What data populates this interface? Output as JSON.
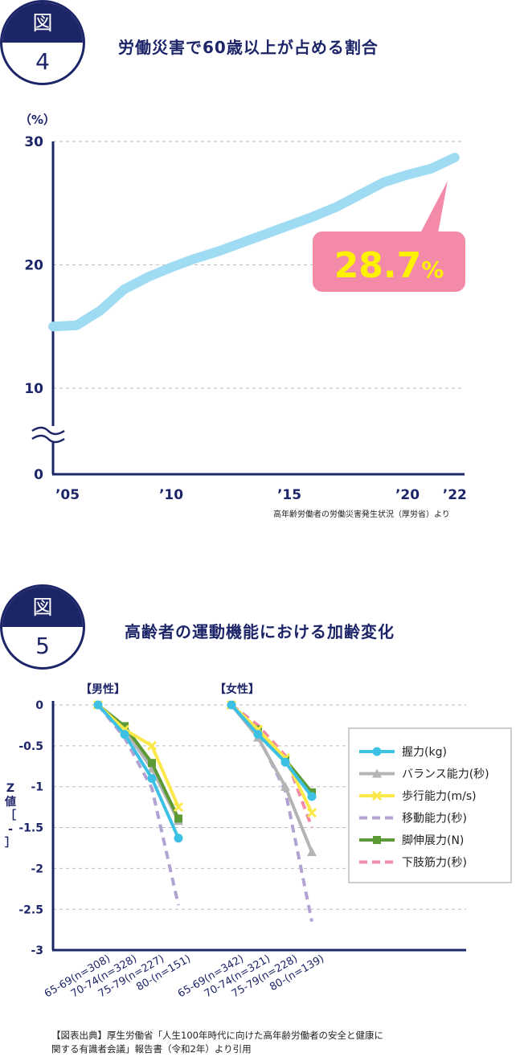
{
  "fig4": {
    "badge_top": "図",
    "badge_num": "4",
    "title": "労働災害で60歳以上が占める割合",
    "unit": "（%）",
    "callout": "28.7",
    "callout_unit": "%",
    "source": "高年齢労働者の労働災害発生状況（厚労省）より",
    "colors": {
      "line": "#9fdcf4",
      "callout": "#f28aa8",
      "callout_text": "#fff200",
      "axis": "#1d2569"
    }
  },
  "fig5": {
    "badge_top": "図",
    "badge_num": "5",
    "title": "高齢者の運動機能における加齢変化",
    "ylabel": "Z値［-］",
    "panel_male": "【男性】",
    "panel_female": "【女性】",
    "citation_line1": "【図表出典】厚生労働省「人生100年時代に向けた高年齢労働者の安全と健康に",
    "citation_line2": "関する有識者会議」報告書（令和2年）より引用"
  },
  "chart_data": [
    {
      "type": "line",
      "ylim": [
        0,
        30
      ],
      "yticks": [
        "0",
        "10",
        "20",
        "30"
      ],
      "axis_break": true,
      "grid": "dashed",
      "xticks": [
        "’05",
        "’10",
        "’15",
        "’20",
        "’22"
      ],
      "x": [
        2005,
        2006,
        2007,
        2008,
        2009,
        2010,
        2011,
        2012,
        2013,
        2014,
        2015,
        2016,
        2017,
        2018,
        2019,
        2020,
        2021,
        2022
      ],
      "series": [
        {
          "values": [
            15.0,
            15.1,
            16.3,
            18.0,
            19.0,
            19.8,
            20.5,
            21.1,
            21.8,
            22.5,
            23.2,
            23.9,
            24.7,
            25.7,
            26.7,
            27.3,
            27.8,
            28.7
          ]
        }
      ]
    },
    {
      "type": "line",
      "ylim": [
        -3,
        0
      ],
      "yticks": [
        "0",
        "-0.5",
        "-1",
        "-1.5",
        "-2",
        "-2.5",
        "-3"
      ],
      "grid": "dashed",
      "legend_position": "right",
      "panels": [
        {
          "name": "【男性】",
          "categories": [
            "65-69(n=308)",
            "70-74(n=328)",
            "75-79(n=227)",
            "80-(n=151)"
          ],
          "series": [
            {
              "name": "握力(kg)",
              "color": "#3cc1e4",
              "values": [
                0,
                -0.36,
                -0.9,
                -1.63
              ]
            },
            {
              "name": "バランス能力(秒)",
              "color": "#b4b4b4",
              "values": [
                0,
                -0.3,
                -0.78,
                -1.42
              ]
            },
            {
              "name": "歩行能力(m/s)",
              "color": "#fbe84a",
              "values": [
                0,
                -0.3,
                -0.5,
                -1.25
              ]
            },
            {
              "name": "移動能力(秒)",
              "color": "#b3a3d3",
              "values": [
                0,
                -0.4,
                -1.02,
                -2.45
              ]
            },
            {
              "name": "脚伸展力(N)",
              "color": "#5b9a34",
              "values": [
                0,
                -0.26,
                -0.71,
                -1.39
              ]
            },
            {
              "name": "下肢筋力(秒)",
              "color": "#f28aa8",
              "values": [
                0,
                -0.34,
                -0.74,
                -1.38
              ]
            }
          ]
        },
        {
          "name": "【女性】",
          "categories": [
            "65-69(n=342)",
            "70-74(n=321)",
            "75-79(n=228)",
            "80-(n=139)"
          ],
          "series": [
            {
              "name": "握力(kg)",
              "color": "#3cc1e4",
              "values": [
                0,
                -0.36,
                -0.7,
                -1.12
              ]
            },
            {
              "name": "バランス能力(秒)",
              "color": "#b4b4b4",
              "values": [
                0,
                -0.4,
                -1.0,
                -1.8
              ]
            },
            {
              "name": "歩行能力(m/s)",
              "color": "#fbe84a",
              "values": [
                0,
                -0.3,
                -0.65,
                -1.32
              ]
            },
            {
              "name": "移動能力(秒)",
              "color": "#b3a3d3",
              "values": [
                0,
                -0.38,
                -1.05,
                -2.65
              ]
            },
            {
              "name": "脚伸展力(N)",
              "color": "#5b9a34",
              "values": [
                0,
                -0.3,
                -0.67,
                -1.07
              ]
            },
            {
              "name": "下肢筋力(秒)",
              "color": "#f28aa8",
              "values": [
                0,
                -0.25,
                -0.62,
                -1.5
              ]
            }
          ]
        }
      ]
    }
  ]
}
